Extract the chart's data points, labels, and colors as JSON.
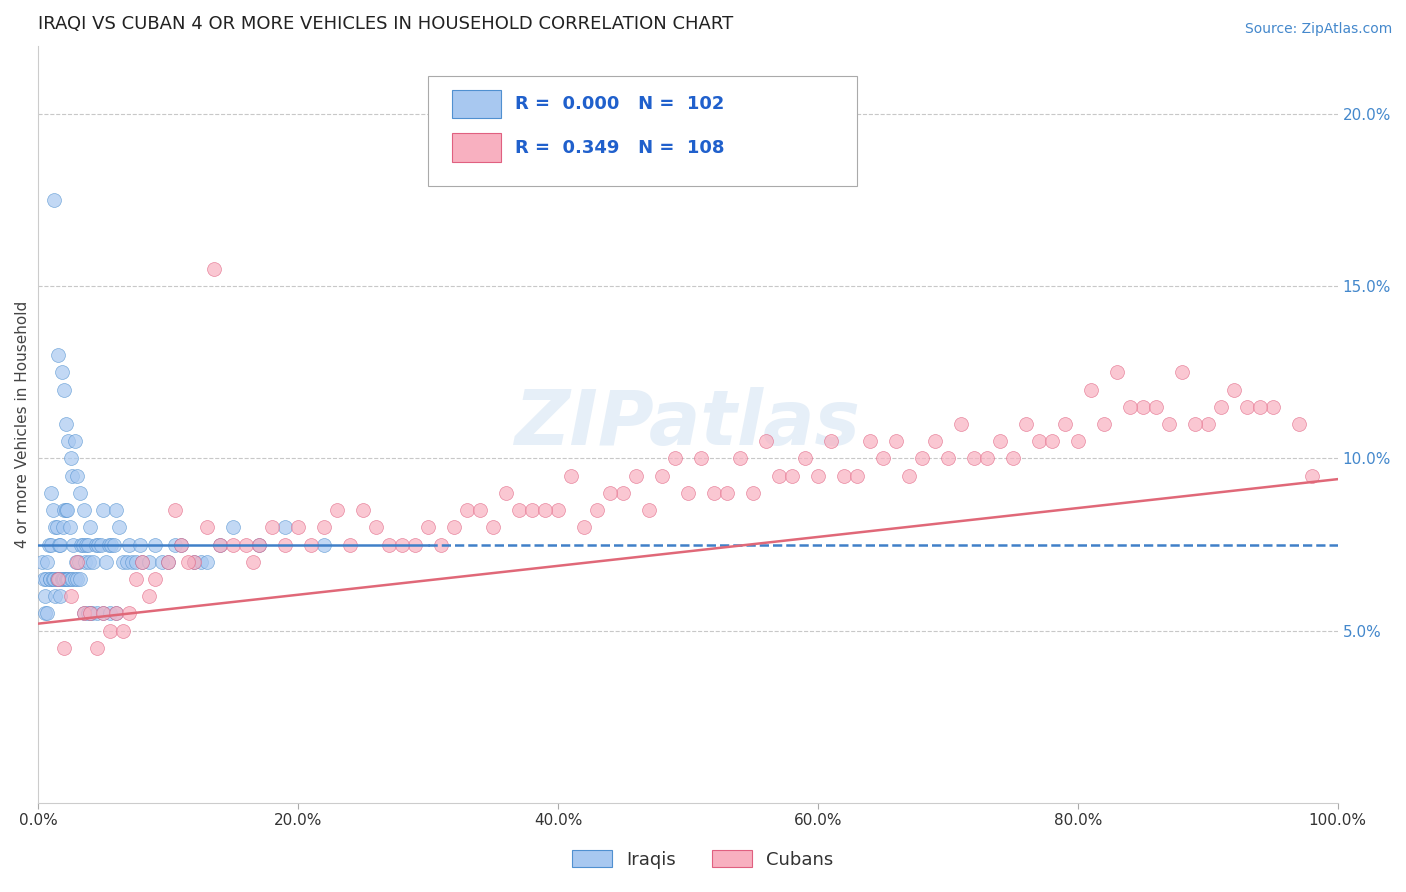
{
  "title": "IRAQI VS CUBAN 4 OR MORE VEHICLES IN HOUSEHOLD CORRELATION CHART",
  "source_text": "Source: ZipAtlas.com",
  "ylabel": "4 or more Vehicles in Household",
  "xlim": [
    0.0,
    100.0
  ],
  "ylim": [
    0.0,
    22.0
  ],
  "xticks": [
    0.0,
    20.0,
    40.0,
    60.0,
    80.0,
    100.0
  ],
  "yticks": [
    5.0,
    10.0,
    15.0,
    20.0
  ],
  "xticklabels": [
    "0.0%",
    "20.0%",
    "40.0%",
    "60.0%",
    "80.0%",
    "100.0%"
  ],
  "yticklabels": [
    "5.0%",
    "10.0%",
    "15.0%",
    "20.0%"
  ],
  "blue_fill": "#A8C8F0",
  "blue_edge": "#5090D0",
  "pink_fill": "#F8B0C0",
  "pink_edge": "#E06080",
  "blue_line_color": "#4080C8",
  "pink_line_color": "#E06878",
  "legend_R1": "0.000",
  "legend_N1": "102",
  "legend_R2": "0.349",
  "legend_N2": "108",
  "label1": "Iraqis",
  "label2": "Cubans",
  "watermark": "ZIPatlas",
  "title_color": "#222222",
  "axis_tick_color": "#4488CC",
  "grid_color": "#C8C8C8",
  "legend_text_color": "#2060CC",
  "iraqis_x": [
    0.3,
    0.4,
    0.5,
    0.6,
    0.7,
    0.8,
    0.9,
    1.0,
    1.0,
    1.1,
    1.2,
    1.3,
    1.4,
    1.5,
    1.6,
    1.7,
    1.8,
    1.9,
    2.0,
    2.0,
    2.1,
    2.1,
    2.2,
    2.3,
    2.4,
    2.5,
    2.6,
    2.7,
    2.8,
    2.9,
    3.0,
    3.1,
    3.2,
    3.3,
    3.4,
    3.5,
    3.6,
    3.7,
    3.8,
    3.9,
    4.0,
    4.1,
    4.2,
    4.4,
    4.6,
    4.8,
    5.0,
    5.2,
    5.4,
    5.6,
    5.8,
    6.0,
    6.2,
    6.5,
    6.8,
    7.0,
    7.2,
    7.5,
    7.8,
    8.0,
    8.5,
    9.0,
    9.5,
    10.0,
    10.5,
    11.0,
    12.0,
    12.5,
    13.0,
    14.0,
    0.5,
    0.7,
    0.9,
    1.1,
    1.2,
    1.3,
    1.4,
    1.5,
    1.6,
    1.7,
    1.8,
    1.9,
    2.0,
    2.1,
    2.2,
    2.3,
    2.5,
    2.6,
    2.8,
    3.0,
    3.2,
    3.5,
    3.8,
    4.0,
    4.5,
    5.0,
    5.5,
    6.0,
    15.0,
    17.0,
    19.0,
    22.0
  ],
  "iraqis_y": [
    7.0,
    6.5,
    6.0,
    6.5,
    7.0,
    7.5,
    6.5,
    7.5,
    9.0,
    8.5,
    17.5,
    8.0,
    8.0,
    13.0,
    7.5,
    7.5,
    12.5,
    8.0,
    12.0,
    8.5,
    11.0,
    8.5,
    8.5,
    10.5,
    8.0,
    10.0,
    9.5,
    7.5,
    10.5,
    7.0,
    9.5,
    7.0,
    9.0,
    7.5,
    7.5,
    8.5,
    7.0,
    7.5,
    7.5,
    7.0,
    8.0,
    5.5,
    7.0,
    7.5,
    7.5,
    7.5,
    8.5,
    7.0,
    7.5,
    7.5,
    7.5,
    8.5,
    8.0,
    7.0,
    7.0,
    7.5,
    7.0,
    7.0,
    7.5,
    7.0,
    7.0,
    7.5,
    7.0,
    7.0,
    7.5,
    7.5,
    7.0,
    7.0,
    7.0,
    7.5,
    5.5,
    5.5,
    6.5,
    6.5,
    6.5,
    6.0,
    6.5,
    6.5,
    6.5,
    6.0,
    6.5,
    6.5,
    6.5,
    6.5,
    6.5,
    6.5,
    6.5,
    6.5,
    6.5,
    6.5,
    6.5,
    5.5,
    5.5,
    5.5,
    5.5,
    5.5,
    5.5,
    5.5,
    8.0,
    7.5,
    8.0,
    7.5
  ],
  "cubans_x": [
    1.5,
    2.5,
    3.0,
    3.5,
    4.0,
    5.0,
    5.5,
    6.0,
    7.0,
    7.5,
    8.0,
    9.0,
    10.0,
    10.5,
    11.0,
    12.0,
    13.0,
    14.0,
    15.0,
    16.0,
    17.0,
    18.0,
    19.0,
    20.0,
    22.0,
    23.0,
    25.0,
    27.0,
    29.0,
    30.0,
    32.0,
    33.0,
    35.0,
    37.0,
    38.0,
    40.0,
    42.0,
    43.0,
    45.0,
    47.0,
    48.0,
    50.0,
    52.0,
    53.0,
    55.0,
    57.0,
    58.0,
    60.0,
    62.0,
    63.0,
    65.0,
    67.0,
    68.0,
    70.0,
    72.0,
    73.0,
    75.0,
    77.0,
    78.0,
    80.0,
    82.0,
    83.0,
    85.0,
    87.0,
    88.0,
    90.0,
    92.0,
    93.0,
    95.0,
    97.0,
    98.0,
    2.0,
    4.5,
    6.5,
    8.5,
    11.5,
    13.5,
    16.5,
    21.0,
    24.0,
    26.0,
    28.0,
    31.0,
    34.0,
    36.0,
    39.0,
    41.0,
    44.0,
    46.0,
    49.0,
    51.0,
    54.0,
    56.0,
    59.0,
    61.0,
    64.0,
    66.0,
    69.0,
    71.0,
    74.0,
    76.0,
    79.0,
    81.0,
    84.0,
    86.0,
    89.0,
    91.0,
    94.0
  ],
  "cubans_y": [
    6.5,
    6.0,
    7.0,
    5.5,
    5.5,
    5.5,
    5.0,
    5.5,
    5.5,
    6.5,
    7.0,
    6.5,
    7.0,
    8.5,
    7.5,
    7.0,
    8.0,
    7.5,
    7.5,
    7.5,
    7.5,
    8.0,
    7.5,
    8.0,
    8.0,
    8.5,
    8.5,
    7.5,
    7.5,
    8.0,
    8.0,
    8.5,
    8.0,
    8.5,
    8.5,
    8.5,
    8.0,
    8.5,
    9.0,
    8.5,
    9.5,
    9.0,
    9.0,
    9.0,
    9.0,
    9.5,
    9.5,
    9.5,
    9.5,
    9.5,
    10.0,
    9.5,
    10.0,
    10.0,
    10.0,
    10.0,
    10.0,
    10.5,
    10.5,
    10.5,
    11.0,
    12.5,
    11.5,
    11.0,
    12.5,
    11.0,
    12.0,
    11.5,
    11.5,
    11.0,
    9.5,
    4.5,
    4.5,
    5.0,
    6.0,
    7.0,
    15.5,
    7.0,
    7.5,
    7.5,
    8.0,
    7.5,
    7.5,
    8.5,
    9.0,
    8.5,
    9.5,
    9.0,
    9.5,
    10.0,
    10.0,
    10.0,
    10.5,
    10.0,
    10.5,
    10.5,
    10.5,
    10.5,
    11.0,
    10.5,
    11.0,
    11.0,
    12.0,
    11.5,
    11.5,
    11.0,
    11.5,
    11.5
  ],
  "iraqis_mean_y": 7.5,
  "pink_line_x0": 0.0,
  "pink_line_y0": 5.2,
  "pink_line_x1": 100.0,
  "pink_line_y1": 9.4
}
